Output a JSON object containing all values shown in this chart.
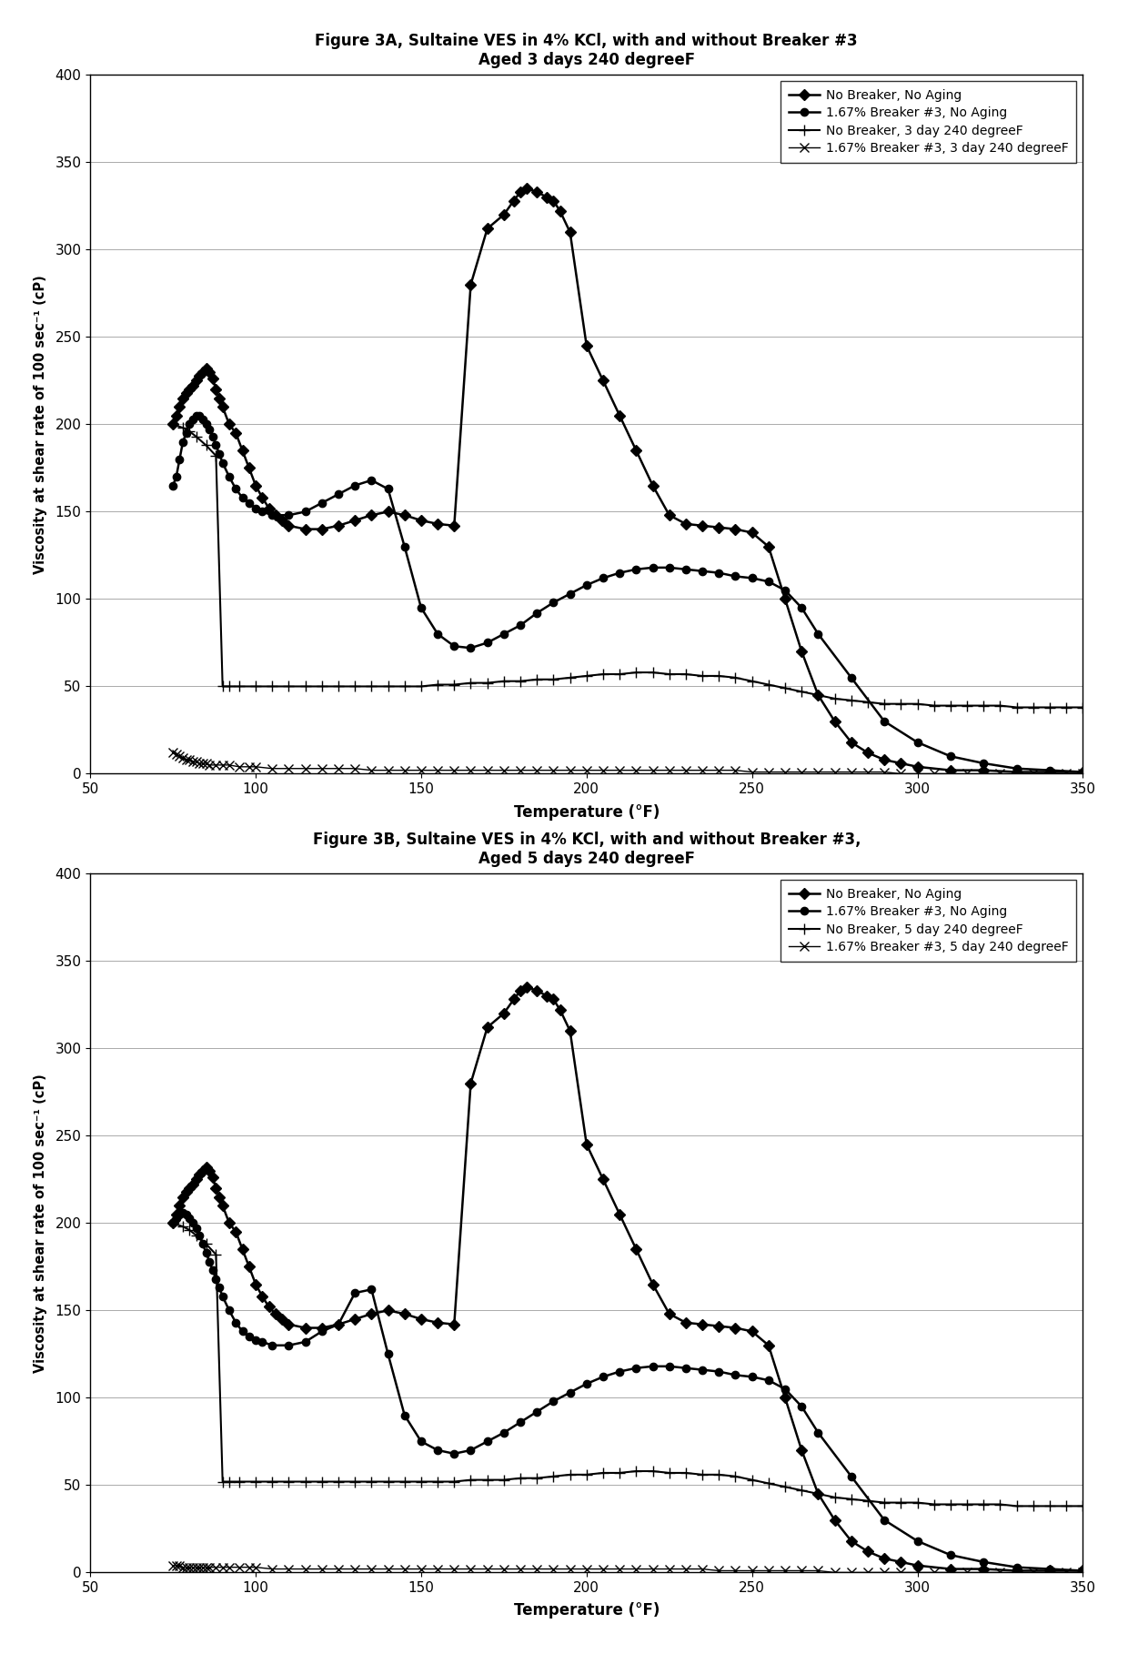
{
  "fig3A": {
    "title_line1": "Figure 3A, Sultaine VES in 4% KCl, with and without Breaker #3",
    "title_line2": "Aged 3 days 240 degreeF",
    "xlabel": "Temperature (°F)",
    "ylabel": "Viscosity at shear rate of 100 sec⁻¹ (cP)",
    "xlim": [
      50,
      350
    ],
    "ylim": [
      0,
      400
    ],
    "xticks": [
      50,
      100,
      150,
      200,
      250,
      300,
      350
    ],
    "yticks": [
      0,
      50,
      100,
      150,
      200,
      250,
      300,
      350,
      400
    ],
    "series": [
      {
        "label": "No Breaker, No Aging",
        "marker": "D",
        "markersize": 6,
        "color": "#000000",
        "linewidth": 1.8,
        "x": [
          75,
          76,
          77,
          78,
          79,
          80,
          81,
          82,
          83,
          84,
          85,
          86,
          87,
          88,
          89,
          90,
          92,
          94,
          96,
          98,
          100,
          102,
          104,
          106,
          108,
          110,
          115,
          120,
          125,
          130,
          135,
          140,
          145,
          150,
          155,
          160,
          165,
          170,
          175,
          178,
          180,
          182,
          185,
          188,
          190,
          192,
          195,
          200,
          205,
          210,
          215,
          220,
          225,
          230,
          235,
          240,
          245,
          250,
          255,
          260,
          265,
          270,
          275,
          280,
          285,
          290,
          295,
          300,
          310,
          320,
          330,
          340,
          350
        ],
        "y": [
          200,
          205,
          210,
          215,
          218,
          220,
          222,
          225,
          228,
          230,
          232,
          230,
          226,
          220,
          215,
          210,
          200,
          195,
          185,
          175,
          165,
          158,
          152,
          148,
          145,
          142,
          140,
          140,
          142,
          145,
          148,
          150,
          148,
          145,
          143,
          142,
          280,
          312,
          320,
          328,
          333,
          335,
          333,
          330,
          328,
          322,
          310,
          245,
          225,
          205,
          185,
          165,
          148,
          143,
          142,
          141,
          140,
          138,
          130,
          100,
          70,
          45,
          30,
          18,
          12,
          8,
          6,
          4,
          2,
          2,
          1,
          1,
          1
        ]
      },
      {
        "label": "1.67% Breaker #3, No Aging",
        "marker": "o",
        "markersize": 6,
        "color": "#000000",
        "linewidth": 1.8,
        "x": [
          75,
          76,
          77,
          78,
          79,
          80,
          81,
          82,
          83,
          84,
          85,
          86,
          87,
          88,
          89,
          90,
          92,
          94,
          96,
          98,
          100,
          102,
          105,
          110,
          115,
          120,
          125,
          130,
          135,
          140,
          145,
          150,
          155,
          160,
          165,
          170,
          175,
          180,
          185,
          190,
          195,
          200,
          205,
          210,
          215,
          220,
          225,
          230,
          235,
          240,
          245,
          250,
          255,
          260,
          265,
          270,
          280,
          290,
          300,
          310,
          320,
          330,
          340,
          350
        ],
        "y": [
          165,
          170,
          180,
          190,
          195,
          200,
          203,
          205,
          205,
          203,
          200,
          197,
          193,
          188,
          183,
          178,
          170,
          163,
          158,
          155,
          152,
          150,
          148,
          148,
          150,
          155,
          160,
          165,
          168,
          163,
          130,
          95,
          80,
          73,
          72,
          75,
          80,
          85,
          92,
          98,
          103,
          108,
          112,
          115,
          117,
          118,
          118,
          117,
          116,
          115,
          113,
          112,
          110,
          105,
          95,
          80,
          55,
          30,
          18,
          10,
          6,
          3,
          2,
          1
        ]
      },
      {
        "label": "No Breaker, 3 day 240 degreeF",
        "marker": "+",
        "markersize": 9,
        "color": "#000000",
        "linewidth": 1.5,
        "x": [
          75,
          78,
          80,
          82,
          85,
          88,
          90,
          92,
          95,
          100,
          105,
          110,
          115,
          120,
          125,
          130,
          135,
          140,
          145,
          150,
          155,
          160,
          165,
          170,
          175,
          180,
          185,
          190,
          195,
          200,
          205,
          210,
          215,
          220,
          225,
          230,
          235,
          240,
          245,
          250,
          255,
          260,
          265,
          270,
          275,
          280,
          285,
          290,
          295,
          300,
          305,
          310,
          315,
          320,
          325,
          330,
          335,
          340,
          345,
          350
        ],
        "y": [
          200,
          198,
          196,
          193,
          188,
          182,
          50,
          50,
          50,
          50,
          50,
          50,
          50,
          50,
          50,
          50,
          50,
          50,
          50,
          50,
          51,
          51,
          52,
          52,
          53,
          53,
          54,
          54,
          55,
          56,
          57,
          57,
          58,
          58,
          57,
          57,
          56,
          56,
          55,
          53,
          51,
          49,
          47,
          45,
          43,
          42,
          41,
          40,
          40,
          40,
          39,
          39,
          39,
          39,
          39,
          38,
          38,
          38,
          38,
          38
        ]
      },
      {
        "label": "1.67% Breaker #3, 3 day 240 degreeF",
        "marker": "x",
        "markersize": 7,
        "color": "#000000",
        "linewidth": 1.0,
        "x": [
          75,
          76,
          77,
          78,
          79,
          80,
          81,
          82,
          83,
          84,
          85,
          86,
          88,
          90,
          92,
          95,
          98,
          100,
          105,
          110,
          115,
          120,
          125,
          130,
          135,
          140,
          145,
          150,
          155,
          160,
          165,
          170,
          175,
          180,
          185,
          190,
          195,
          200,
          205,
          210,
          215,
          220,
          225,
          230,
          235,
          240,
          245,
          250,
          255,
          260,
          265,
          270,
          275,
          280,
          285,
          290,
          295,
          300,
          305,
          310,
          315,
          320,
          325,
          330,
          335,
          340,
          345,
          350
        ],
        "y": [
          12,
          11,
          10,
          9,
          8,
          8,
          7,
          7,
          6,
          6,
          6,
          5,
          5,
          5,
          5,
          4,
          4,
          4,
          3,
          3,
          3,
          3,
          3,
          3,
          2,
          2,
          2,
          2,
          2,
          2,
          2,
          2,
          2,
          2,
          2,
          2,
          2,
          2,
          2,
          2,
          2,
          2,
          2,
          2,
          2,
          2,
          2,
          1,
          1,
          1,
          1,
          1,
          1,
          1,
          1,
          1,
          0,
          0,
          0,
          0,
          0,
          0,
          0,
          0,
          0,
          0,
          0,
          0
        ]
      }
    ]
  },
  "fig3B": {
    "title_line1": "Figure 3B, Sultaine VES in 4% KCl, with and without Breaker #3,",
    "title_line2": "Aged 5 days 240 degreeF",
    "xlabel": "Temperature (°F)",
    "ylabel": "Viscosity at shear rate of 100 sec⁻¹ (cP)",
    "xlim": [
      50,
      350
    ],
    "ylim": [
      0,
      400
    ],
    "xticks": [
      50,
      100,
      150,
      200,
      250,
      300,
      350
    ],
    "yticks": [
      0,
      50,
      100,
      150,
      200,
      250,
      300,
      350,
      400
    ],
    "series": [
      {
        "label": "No Breaker, No Aging",
        "marker": "D",
        "markersize": 6,
        "color": "#000000",
        "linewidth": 1.8,
        "x": [
          75,
          76,
          77,
          78,
          79,
          80,
          81,
          82,
          83,
          84,
          85,
          86,
          87,
          88,
          89,
          90,
          92,
          94,
          96,
          98,
          100,
          102,
          104,
          106,
          108,
          110,
          115,
          120,
          125,
          130,
          135,
          140,
          145,
          150,
          155,
          160,
          165,
          170,
          175,
          178,
          180,
          182,
          185,
          188,
          190,
          192,
          195,
          200,
          205,
          210,
          215,
          220,
          225,
          230,
          235,
          240,
          245,
          250,
          255,
          260,
          265,
          270,
          275,
          280,
          285,
          290,
          295,
          300,
          310,
          320,
          330,
          340,
          350
        ],
        "y": [
          200,
          205,
          210,
          215,
          218,
          220,
          222,
          225,
          228,
          230,
          232,
          230,
          226,
          220,
          215,
          210,
          200,
          195,
          185,
          175,
          165,
          158,
          152,
          148,
          145,
          142,
          140,
          140,
          142,
          145,
          148,
          150,
          148,
          145,
          143,
          142,
          280,
          312,
          320,
          328,
          333,
          335,
          333,
          330,
          328,
          322,
          310,
          245,
          225,
          205,
          185,
          165,
          148,
          143,
          142,
          141,
          140,
          138,
          130,
          100,
          70,
          45,
          30,
          18,
          12,
          8,
          6,
          4,
          2,
          2,
          1,
          1,
          1
        ]
      },
      {
        "label": "1.67% Breaker #3, No Aging",
        "marker": "o",
        "markersize": 6,
        "color": "#000000",
        "linewidth": 1.8,
        "x": [
          75,
          76,
          77,
          78,
          79,
          80,
          81,
          82,
          83,
          84,
          85,
          86,
          87,
          88,
          89,
          90,
          92,
          94,
          96,
          98,
          100,
          102,
          105,
          110,
          115,
          120,
          125,
          130,
          135,
          140,
          145,
          150,
          155,
          160,
          165,
          170,
          175,
          180,
          185,
          190,
          195,
          200,
          205,
          210,
          215,
          220,
          225,
          230,
          235,
          240,
          245,
          250,
          255,
          260,
          265,
          270,
          280,
          290,
          300,
          310,
          320,
          330,
          340,
          350
        ],
        "y": [
          200,
          203,
          205,
          206,
          205,
          203,
          200,
          197,
          193,
          188,
          183,
          178,
          173,
          168,
          163,
          158,
          150,
          143,
          138,
          135,
          133,
          132,
          130,
          130,
          132,
          138,
          142,
          160,
          162,
          125,
          90,
          75,
          70,
          68,
          70,
          75,
          80,
          86,
          92,
          98,
          103,
          108,
          112,
          115,
          117,
          118,
          118,
          117,
          116,
          115,
          113,
          112,
          110,
          105,
          95,
          80,
          55,
          30,
          18,
          10,
          6,
          3,
          2,
          1
        ]
      },
      {
        "label": "No Breaker, 5 day 240 degreeF",
        "marker": "+",
        "markersize": 9,
        "color": "#000000",
        "linewidth": 1.5,
        "x": [
          75,
          78,
          80,
          82,
          85,
          88,
          90,
          92,
          95,
          100,
          105,
          110,
          115,
          120,
          125,
          130,
          135,
          140,
          145,
          150,
          155,
          160,
          165,
          170,
          175,
          180,
          185,
          190,
          195,
          200,
          205,
          210,
          215,
          220,
          225,
          230,
          235,
          240,
          245,
          250,
          255,
          260,
          265,
          270,
          275,
          280,
          285,
          290,
          295,
          300,
          305,
          310,
          315,
          320,
          325,
          330,
          335,
          340,
          345,
          350
        ],
        "y": [
          200,
          198,
          196,
          193,
          188,
          182,
          52,
          52,
          52,
          52,
          52,
          52,
          52,
          52,
          52,
          52,
          52,
          52,
          52,
          52,
          52,
          52,
          53,
          53,
          53,
          54,
          54,
          55,
          56,
          56,
          57,
          57,
          58,
          58,
          57,
          57,
          56,
          56,
          55,
          53,
          51,
          49,
          47,
          45,
          43,
          42,
          41,
          40,
          40,
          40,
          39,
          39,
          39,
          39,
          39,
          38,
          38,
          38,
          38,
          38
        ]
      },
      {
        "label": "1.67% Breaker #3, 5 day 240 degreeF",
        "marker": "x",
        "markersize": 7,
        "color": "#000000",
        "linewidth": 1.0,
        "x": [
          75,
          76,
          77,
          78,
          79,
          80,
          81,
          82,
          83,
          84,
          85,
          86,
          88,
          90,
          92,
          95,
          98,
          100,
          105,
          110,
          115,
          120,
          125,
          130,
          135,
          140,
          145,
          150,
          155,
          160,
          165,
          170,
          175,
          180,
          185,
          190,
          195,
          200,
          205,
          210,
          215,
          220,
          225,
          230,
          235,
          240,
          245,
          250,
          255,
          260,
          265,
          270,
          275,
          280,
          285,
          290,
          295,
          300,
          305,
          310,
          315,
          320,
          325,
          330,
          335,
          340,
          345,
          350
        ],
        "y": [
          4,
          4,
          4,
          3,
          3,
          3,
          3,
          3,
          3,
          3,
          3,
          3,
          3,
          3,
          3,
          3,
          3,
          3,
          2,
          2,
          2,
          2,
          2,
          2,
          2,
          2,
          2,
          2,
          2,
          2,
          2,
          2,
          2,
          2,
          2,
          2,
          2,
          2,
          2,
          2,
          2,
          2,
          2,
          2,
          2,
          1,
          1,
          1,
          1,
          1,
          1,
          1,
          0,
          0,
          0,
          0,
          0,
          0,
          0,
          0,
          0,
          0,
          0,
          0,
          0,
          0,
          0,
          0
        ]
      }
    ]
  }
}
